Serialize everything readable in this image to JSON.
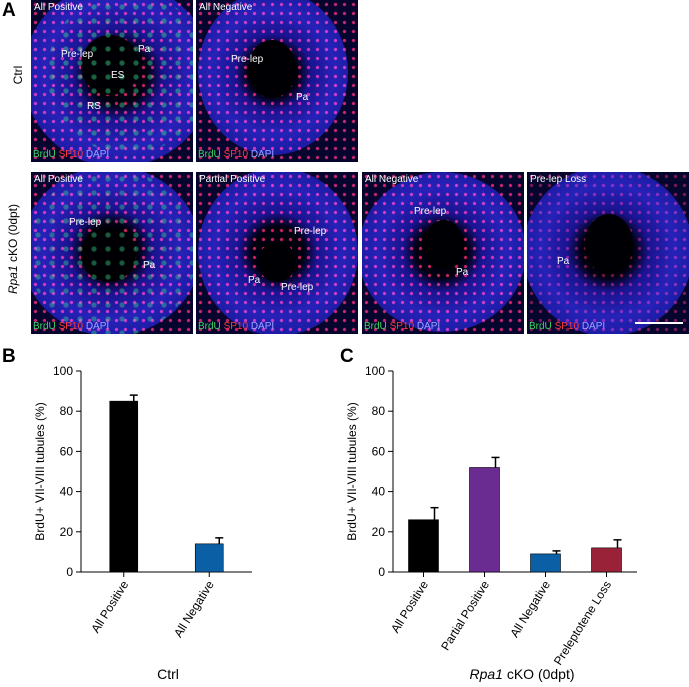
{
  "panel_letters": {
    "a": "A",
    "b": "B",
    "c": "C"
  },
  "rows": {
    "ctrl": "Ctrl",
    "cko_italic": "Rpa1",
    "cko_rest": " cKO (0dpt)"
  },
  "stain": {
    "brdu": "BrdU",
    "sp10": "SP10",
    "dapi": "DAPI"
  },
  "micrographs": {
    "ctrl_pos": {
      "label": "All Positive",
      "pre": "Pre-lep",
      "pa": "Pa",
      "es": "ES",
      "rs": "RS"
    },
    "ctrl_neg": {
      "label": "All Negative",
      "pre": "Pre-lep",
      "pa": "Pa"
    },
    "cko_pos": {
      "label": "All Positive",
      "pre": "Pre-lep",
      "pa": "Pa"
    },
    "cko_partial": {
      "label": "Partial Positive",
      "pre1": "Pre-lep",
      "pre2": "Pre-lep",
      "pa": "Pa"
    },
    "cko_neg": {
      "label": "All Negative",
      "pre": "Pre-lep",
      "pa": "Pa"
    },
    "cko_loss": {
      "label": "Pre-lep Loss",
      "pa": "Pa"
    }
  },
  "chart_data": [
    {
      "type": "bar",
      "panel": "B",
      "categories": [
        "All Positive",
        "All Negative"
      ],
      "values": [
        85,
        14
      ],
      "errors": [
        3,
        3
      ],
      "colors": [
        "#000000",
        "#0b5fa5"
      ],
      "ylabel": "BrdU+ VII-VIII tubules (%)",
      "xlabel": "Ctrl",
      "ylim": [
        0,
        100
      ],
      "yticks": [
        0,
        20,
        40,
        60,
        80,
        100
      ]
    },
    {
      "type": "bar",
      "panel": "C",
      "categories": [
        "All Positive",
        "Partial Positive",
        "All Negative",
        "Preleptotene Loss"
      ],
      "values": [
        26,
        52,
        9,
        12
      ],
      "errors": [
        6,
        5,
        1.5,
        4
      ],
      "colors": [
        "#000000",
        "#6a2c91",
        "#0b5fa5",
        "#9a2238"
      ],
      "ylabel": "BrdU+ VII-VIII tubules (%)",
      "xlabel_italic": "Rpa1",
      "xlabel_rest": " cKO (0dpt)",
      "ylim": [
        0,
        100
      ],
      "yticks": [
        0,
        20,
        40,
        60,
        80,
        100
      ]
    }
  ]
}
